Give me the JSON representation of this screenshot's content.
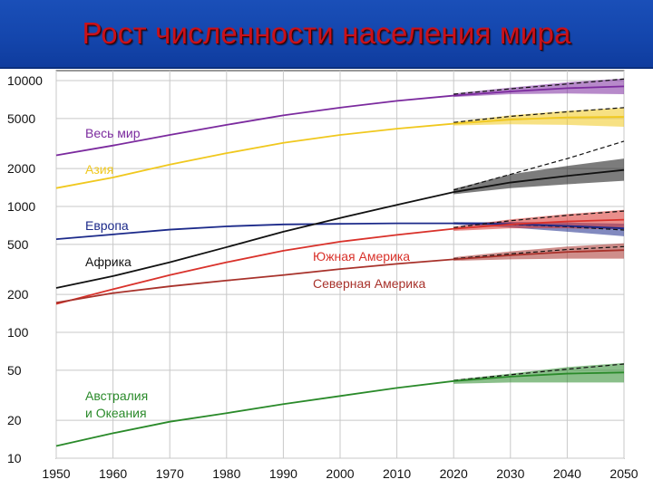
{
  "title": "Рост численности населения мира",
  "chart_data": {
    "type": "line",
    "title": "Рост численности населения мира",
    "xlabel": "",
    "ylabel": "",
    "y_scale": "log",
    "xlim": [
      1950,
      2050
    ],
    "ylim": [
      10,
      12000
    ],
    "grid": true,
    "x_ticks": [
      1950,
      1960,
      1970,
      1980,
      1990,
      2000,
      2010,
      2020,
      2030,
      2040,
      2050
    ],
    "y_ticks": [
      10,
      20,
      50,
      100,
      200,
      500,
      1000,
      2000,
      5000,
      10000
    ],
    "legend": "inline labels",
    "series": [
      {
        "name": "Весь мир",
        "color": "#7b2a9e",
        "x": [
          1950,
          1960,
          1970,
          1980,
          1990,
          2000,
          2010,
          2020,
          2030,
          2040,
          2050
        ],
        "y": [
          2550,
          3050,
          3700,
          4450,
          5300,
          6100,
          6900,
          7600,
          8200,
          8700,
          9000
        ],
        "projection": [
          7800,
          8600,
          9400,
          10300
        ],
        "band_low": [
          7400,
          7800,
          7900,
          7800
        ],
        "band_high": [
          7900,
          8800,
          9700,
          10400
        ]
      },
      {
        "name": "Азия",
        "color": "#f0c81e",
        "x": [
          1950,
          1960,
          1970,
          1980,
          1990,
          2000,
          2010,
          2020,
          2030,
          2040,
          2050
        ],
        "y": [
          1400,
          1700,
          2150,
          2650,
          3200,
          3700,
          4150,
          4550,
          4900,
          5100,
          5150
        ],
        "projection": [
          4650,
          5200,
          5650,
          6100
        ],
        "band_low": [
          4400,
          4500,
          4450,
          4300
        ],
        "band_high": [
          4700,
          5300,
          5750,
          6100
        ]
      },
      {
        "name": "Европа",
        "color": "#1c2a8a",
        "x": [
          1950,
          1960,
          1970,
          1980,
          1990,
          2000,
          2010,
          2020,
          2030,
          2040,
          2050
        ],
        "y": [
          550,
          600,
          655,
          695,
          720,
          728,
          735,
          735,
          725,
          700,
          670
        ],
        "projection": [
          738,
          720,
          690,
          650
        ],
        "band_low": [
          720,
          680,
          630,
          580
        ],
        "band_high": [
          750,
          755,
          745,
          730
        ]
      },
      {
        "name": "Африка",
        "color": "#111111",
        "x": [
          1950,
          1960,
          1970,
          1980,
          1990,
          2000,
          2010,
          2020,
          2030,
          2040,
          2050
        ],
        "y": [
          225,
          280,
          360,
          475,
          630,
          810,
          1030,
          1300,
          1550,
          1750,
          1950
        ],
        "projection": [
          1350,
          1800,
          2400,
          3300
        ],
        "band_low": [
          1250,
          1400,
          1500,
          1600
        ],
        "band_high": [
          1380,
          1800,
          2100,
          2400
        ]
      },
      {
        "name": "Южная Америка",
        "color": "#d9322b",
        "x": [
          1950,
          1960,
          1970,
          1980,
          1990,
          2000,
          2010,
          2020,
          2030,
          2040,
          2050
        ],
        "y": [
          168,
          220,
          285,
          360,
          445,
          525,
          595,
          665,
          720,
          760,
          785
        ],
        "projection": [
          680,
          770,
          850,
          920
        ],
        "band_low": [
          640,
          670,
          670,
          660
        ],
        "band_high": [
          690,
          790,
          870,
          940
        ]
      },
      {
        "name": "Северная Америка",
        "color": "#a8322b",
        "x": [
          1950,
          1960,
          1970,
          1980,
          1990,
          2000,
          2010,
          2020,
          2030,
          2040,
          2050
        ],
        "y": [
          172,
          205,
          232,
          258,
          285,
          318,
          350,
          380,
          410,
          435,
          450
        ],
        "projection": [
          385,
          420,
          455,
          480
        ],
        "band_low": [
          370,
          380,
          385,
          385
        ],
        "band_high": [
          395,
          440,
          480,
          510
        ]
      },
      {
        "name": "Австралия и Океания",
        "color": "#2a8a2a",
        "x": [
          1950,
          1960,
          1970,
          1980,
          1990,
          2000,
          2010,
          2020,
          2030,
          2040,
          2050
        ],
        "y": [
          12.5,
          15.8,
          19.5,
          22.8,
          26.9,
          31.2,
          36.2,
          41,
          44.5,
          47,
          48
        ],
        "projection": [
          41.5,
          46,
          51,
          56
        ],
        "band_low": [
          39,
          40,
          40,
          40
        ],
        "band_high": [
          42,
          47,
          53,
          57
        ]
      }
    ],
    "series_labels": [
      {
        "lines": [
          "Весь мир"
        ],
        "color": "#7b2a9e"
      },
      {
        "lines": [
          "Азия"
        ],
        "color": "#f0c81e"
      },
      {
        "lines": [
          "Европа"
        ],
        "color": "#1c2a8a"
      },
      {
        "lines": [
          "Африка"
        ],
        "color": "#111111"
      },
      {
        "lines": [
          "Южная Америка"
        ],
        "color": "#d9322b"
      },
      {
        "lines": [
          "Северная Америка"
        ],
        "color": "#a8322b"
      },
      {
        "lines": [
          "Австралия",
          "и Океания"
        ],
        "color": "#2a8a2a"
      }
    ]
  }
}
